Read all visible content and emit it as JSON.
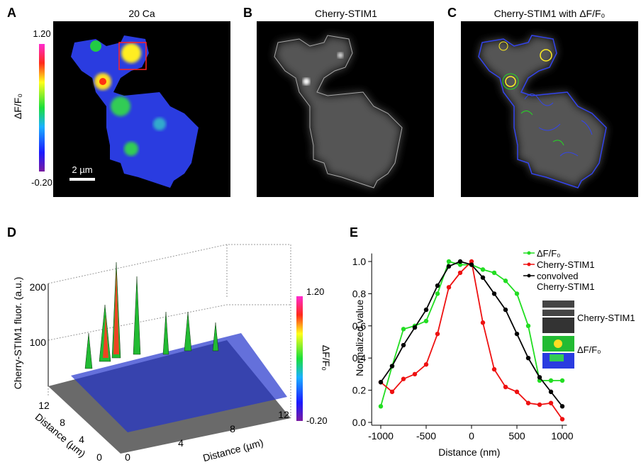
{
  "panels": {
    "a": {
      "letter": "A",
      "title": "20 Ca",
      "colorbar_max": "1.20",
      "colorbar_min": "-0.20",
      "colorbar_label": "ΔF/F₀",
      "scale_bar": "2 µm"
    },
    "b": {
      "letter": "B",
      "title": "Cherry-STIM1"
    },
    "c": {
      "letter": "C",
      "title": "Cherry-STIM1 with ΔF/F₀"
    },
    "d": {
      "letter": "D",
      "z_label": "Cherry-STIM1 fluor. (a.u.)",
      "z_ticks": [
        "100",
        "200"
      ],
      "x_label": "Distance (µm)",
      "x_ticks": [
        "0",
        "4",
        "8",
        "12"
      ],
      "y_label": "Distance (µm)",
      "y_ticks": [
        "0",
        "4",
        "8",
        "12"
      ],
      "colorbar_max": "1.20",
      "colorbar_min": "-0.20",
      "colorbar_label": "ΔF/F₀"
    },
    "e": {
      "letter": "E",
      "inset_labels": [
        "Cherry-STIM1",
        "ΔF/F₀"
      ]
    }
  },
  "chart_data": {
    "type": "line",
    "x_label": "Distance (nm)",
    "y_label": "Normalized value",
    "x": [
      -1000,
      -875,
      -750,
      -625,
      -500,
      -375,
      -250,
      -125,
      0,
      125,
      250,
      375,
      500,
      625,
      750,
      875,
      1000
    ],
    "series": [
      {
        "name": "ΔF/F₀",
        "color": "#22dd22",
        "values": [
          0.1,
          0.35,
          0.58,
          0.6,
          0.63,
          0.8,
          1.0,
          0.98,
          0.98,
          0.95,
          0.93,
          0.88,
          0.8,
          0.6,
          0.26,
          0.26,
          0.26
        ]
      },
      {
        "name": "Cherry-STIM1",
        "color": "#ee1111",
        "values": [
          0.25,
          0.19,
          0.27,
          0.3,
          0.36,
          0.55,
          0.84,
          0.93,
          1.0,
          0.62,
          0.33,
          0.22,
          0.19,
          0.12,
          0.11,
          0.12,
          0.02
        ]
      },
      {
        "name": "convolved Cherry-STIM1",
        "color": "#000000",
        "values": [
          0.25,
          0.35,
          0.48,
          0.59,
          0.7,
          0.85,
          0.97,
          1.0,
          0.98,
          0.9,
          0.8,
          0.7,
          0.55,
          0.4,
          0.28,
          0.19,
          0.1
        ]
      }
    ],
    "xlim": [
      -1100,
      1050
    ],
    "xticks": [
      -1000,
      -500,
      0,
      500,
      1000
    ],
    "ylim": [
      0,
      1.05
    ],
    "yticks": [
      {
        "value": 0,
        "label": "0.0"
      },
      0.2,
      0.4,
      0.6,
      0.8,
      {
        "value": 1,
        "label": "1.0"
      }
    ]
  }
}
